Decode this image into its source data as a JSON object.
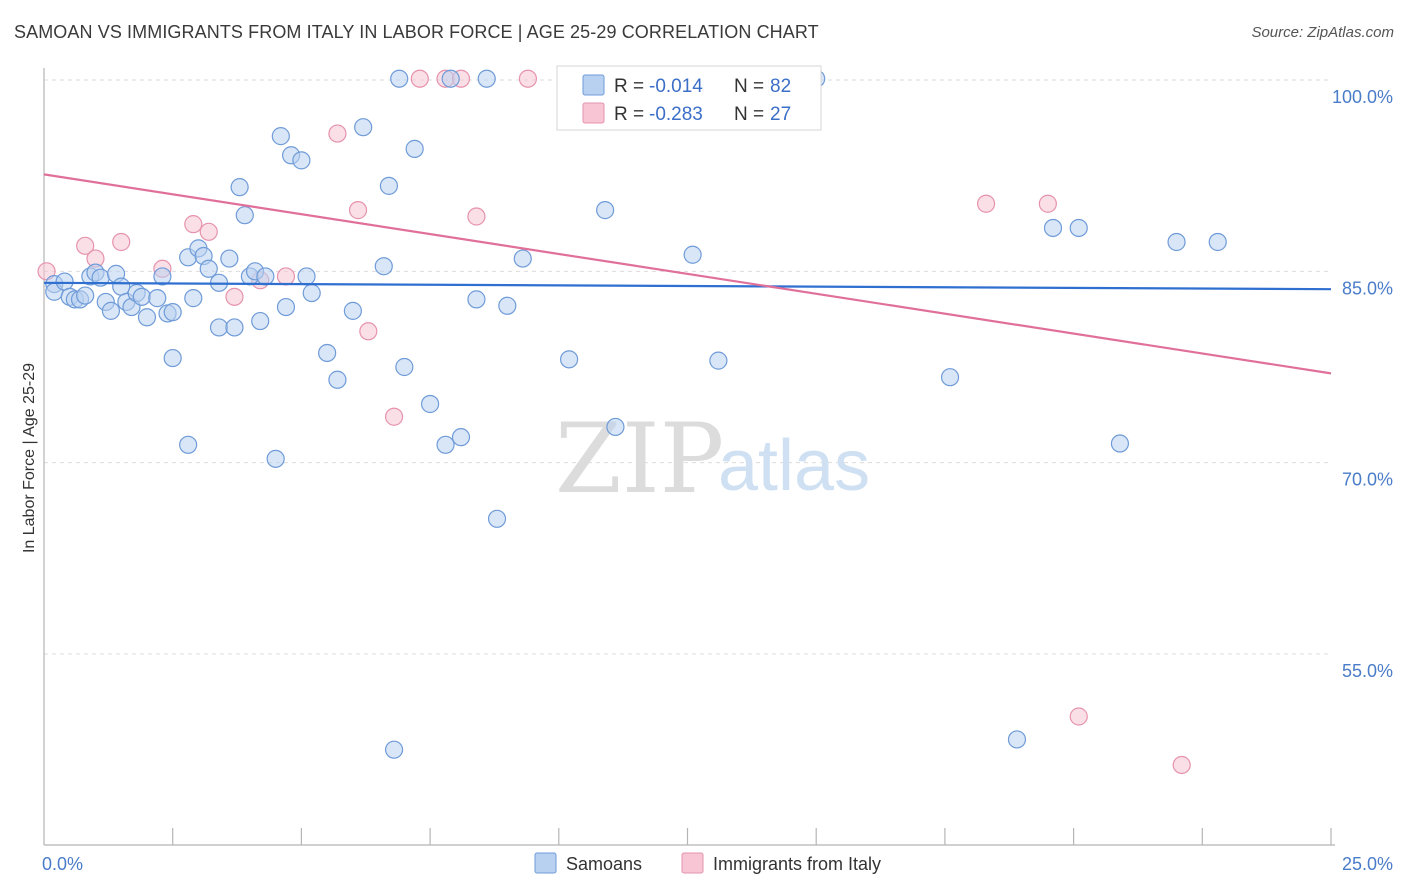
{
  "title": "SAMOAN VS IMMIGRANTS FROM ITALY IN LABOR FORCE | AGE 25-29 CORRELATION CHART",
  "source": "Source: ZipAtlas.com",
  "watermark": {
    "zip": "ZIP",
    "atlas": "atlas"
  },
  "colors": {
    "samoans_fill": "#b9d1f0",
    "samoans_stroke": "#6f9bd8",
    "samoans_line": "#2f6fd0",
    "italy_fill": "#f7c5d3",
    "italy_stroke": "#e693ad",
    "italy_line": "#e0709a",
    "tick_text": "#4a7cc9",
    "grid": "#dcdcdc"
  },
  "legend": {
    "rows": [
      {
        "r_label": "R = ",
        "r_value": "-0.014",
        "n_label": "N = ",
        "n_value": "82"
      },
      {
        "r_label": "R = ",
        "r_value": "-0.283",
        "n_label": "N = ",
        "n_value": "27"
      }
    ]
  },
  "bottom_legend": [
    "Samoans",
    "Immigrants from Italy"
  ],
  "chart_data": {
    "type": "scatter",
    "title": "SAMOAN VS IMMIGRANTS FROM ITALY IN LABOR FORCE | AGE 25-29 CORRELATION CHART",
    "xlabel": "",
    "ylabel": "In Labor Force | Age 25-29",
    "xlim": [
      0,
      25
    ],
    "ylim": [
      40,
      102
    ],
    "x_tick_labels": [
      "0.0%",
      "25.0%"
    ],
    "y_ticks": [
      100,
      85,
      70,
      55
    ],
    "y_tick_labels": [
      "100.0%",
      "85.0%",
      "70.0%",
      "55.0%"
    ],
    "grid": true,
    "series": [
      {
        "name": "Samoans",
        "trend": [
          [
            0,
            84.1
          ],
          [
            25,
            83.6
          ]
        ],
        "points": [
          [
            0.2,
            84.0
          ],
          [
            0.2,
            83.4
          ],
          [
            0.4,
            84.2
          ],
          [
            0.5,
            83.0
          ],
          [
            0.6,
            82.8
          ],
          [
            0.7,
            82.8
          ],
          [
            0.8,
            83.1
          ],
          [
            0.9,
            84.6
          ],
          [
            1.0,
            84.9
          ],
          [
            1.1,
            84.5
          ],
          [
            1.4,
            84.8
          ],
          [
            1.5,
            83.8
          ],
          [
            1.2,
            82.6
          ],
          [
            1.3,
            81.9
          ],
          [
            1.6,
            82.6
          ],
          [
            1.7,
            82.2
          ],
          [
            1.8,
            83.3
          ],
          [
            1.9,
            83.0
          ],
          [
            2.0,
            81.4
          ],
          [
            2.2,
            82.9
          ],
          [
            2.3,
            84.6
          ],
          [
            2.4,
            81.7
          ],
          [
            2.5,
            81.8
          ],
          [
            2.5,
            78.2
          ],
          [
            2.8,
            86.1
          ],
          [
            2.8,
            71.4
          ],
          [
            2.9,
            82.9
          ],
          [
            3.0,
            86.8
          ],
          [
            3.1,
            86.2
          ],
          [
            3.2,
            85.2
          ],
          [
            3.4,
            84.1
          ],
          [
            3.4,
            80.6
          ],
          [
            3.6,
            86.0
          ],
          [
            3.7,
            80.6
          ],
          [
            3.8,
            91.6
          ],
          [
            3.9,
            89.4
          ],
          [
            4.0,
            84.6
          ],
          [
            4.1,
            85.0
          ],
          [
            4.2,
            81.1
          ],
          [
            4.3,
            84.6
          ],
          [
            4.5,
            70.3
          ],
          [
            4.6,
            95.6
          ],
          [
            4.7,
            82.2
          ],
          [
            4.8,
            94.1
          ],
          [
            5.0,
            93.7
          ],
          [
            5.1,
            84.6
          ],
          [
            5.2,
            83.3
          ],
          [
            5.5,
            78.6
          ],
          [
            5.7,
            76.5
          ],
          [
            6.0,
            81.9
          ],
          [
            6.2,
            96.3
          ],
          [
            6.6,
            85.4
          ],
          [
            6.7,
            91.7
          ],
          [
            6.8,
            47.5
          ],
          [
            6.9,
            100.1
          ],
          [
            7.0,
            77.5
          ],
          [
            7.2,
            94.6
          ],
          [
            7.5,
            74.6
          ],
          [
            7.8,
            71.4
          ],
          [
            7.9,
            100.1
          ],
          [
            8.1,
            72.0
          ],
          [
            8.4,
            82.8
          ],
          [
            8.6,
            100.1
          ],
          [
            8.8,
            65.6
          ],
          [
            9.0,
            82.3
          ],
          [
            9.3,
            86.0
          ],
          [
            10.2,
            78.1
          ],
          [
            10.9,
            89.8
          ],
          [
            11.1,
            72.8
          ],
          [
            11.7,
            100.1
          ],
          [
            12.6,
            86.3
          ],
          [
            13.1,
            78.0
          ],
          [
            15.0,
            100.1
          ],
          [
            17.6,
            76.7
          ],
          [
            18.9,
            48.3
          ],
          [
            19.6,
            88.4
          ],
          [
            20.1,
            88.4
          ],
          [
            20.9,
            71.5
          ],
          [
            22.0,
            87.3
          ],
          [
            22.8,
            87.3
          ],
          [
            13.5,
            100.1
          ],
          [
            14.2,
            100.1
          ]
        ]
      },
      {
        "name": "Immigrants from Italy",
        "trend": [
          [
            0,
            92.6
          ],
          [
            25,
            77.0
          ]
        ],
        "points": [
          [
            0.05,
            85.0
          ],
          [
            0.8,
            87.0
          ],
          [
            1.0,
            86.0
          ],
          [
            1.5,
            87.3
          ],
          [
            2.3,
            85.2
          ],
          [
            2.9,
            88.7
          ],
          [
            3.2,
            88.1
          ],
          [
            3.7,
            83.0
          ],
          [
            4.2,
            84.3
          ],
          [
            4.7,
            84.6
          ],
          [
            5.7,
            95.8
          ],
          [
            6.1,
            89.8
          ],
          [
            6.3,
            80.3
          ],
          [
            6.8,
            73.6
          ],
          [
            7.3,
            100.1
          ],
          [
            7.8,
            100.1
          ],
          [
            8.1,
            100.1
          ],
          [
            8.4,
            89.3
          ],
          [
            9.4,
            100.1
          ],
          [
            10.5,
            100.1
          ],
          [
            11.7,
            100.1
          ],
          [
            13.0,
            100.1
          ],
          [
            14.6,
            100.1
          ],
          [
            18.3,
            90.3
          ],
          [
            19.5,
            90.3
          ],
          [
            20.1,
            50.1
          ],
          [
            22.1,
            46.3
          ]
        ]
      }
    ]
  }
}
